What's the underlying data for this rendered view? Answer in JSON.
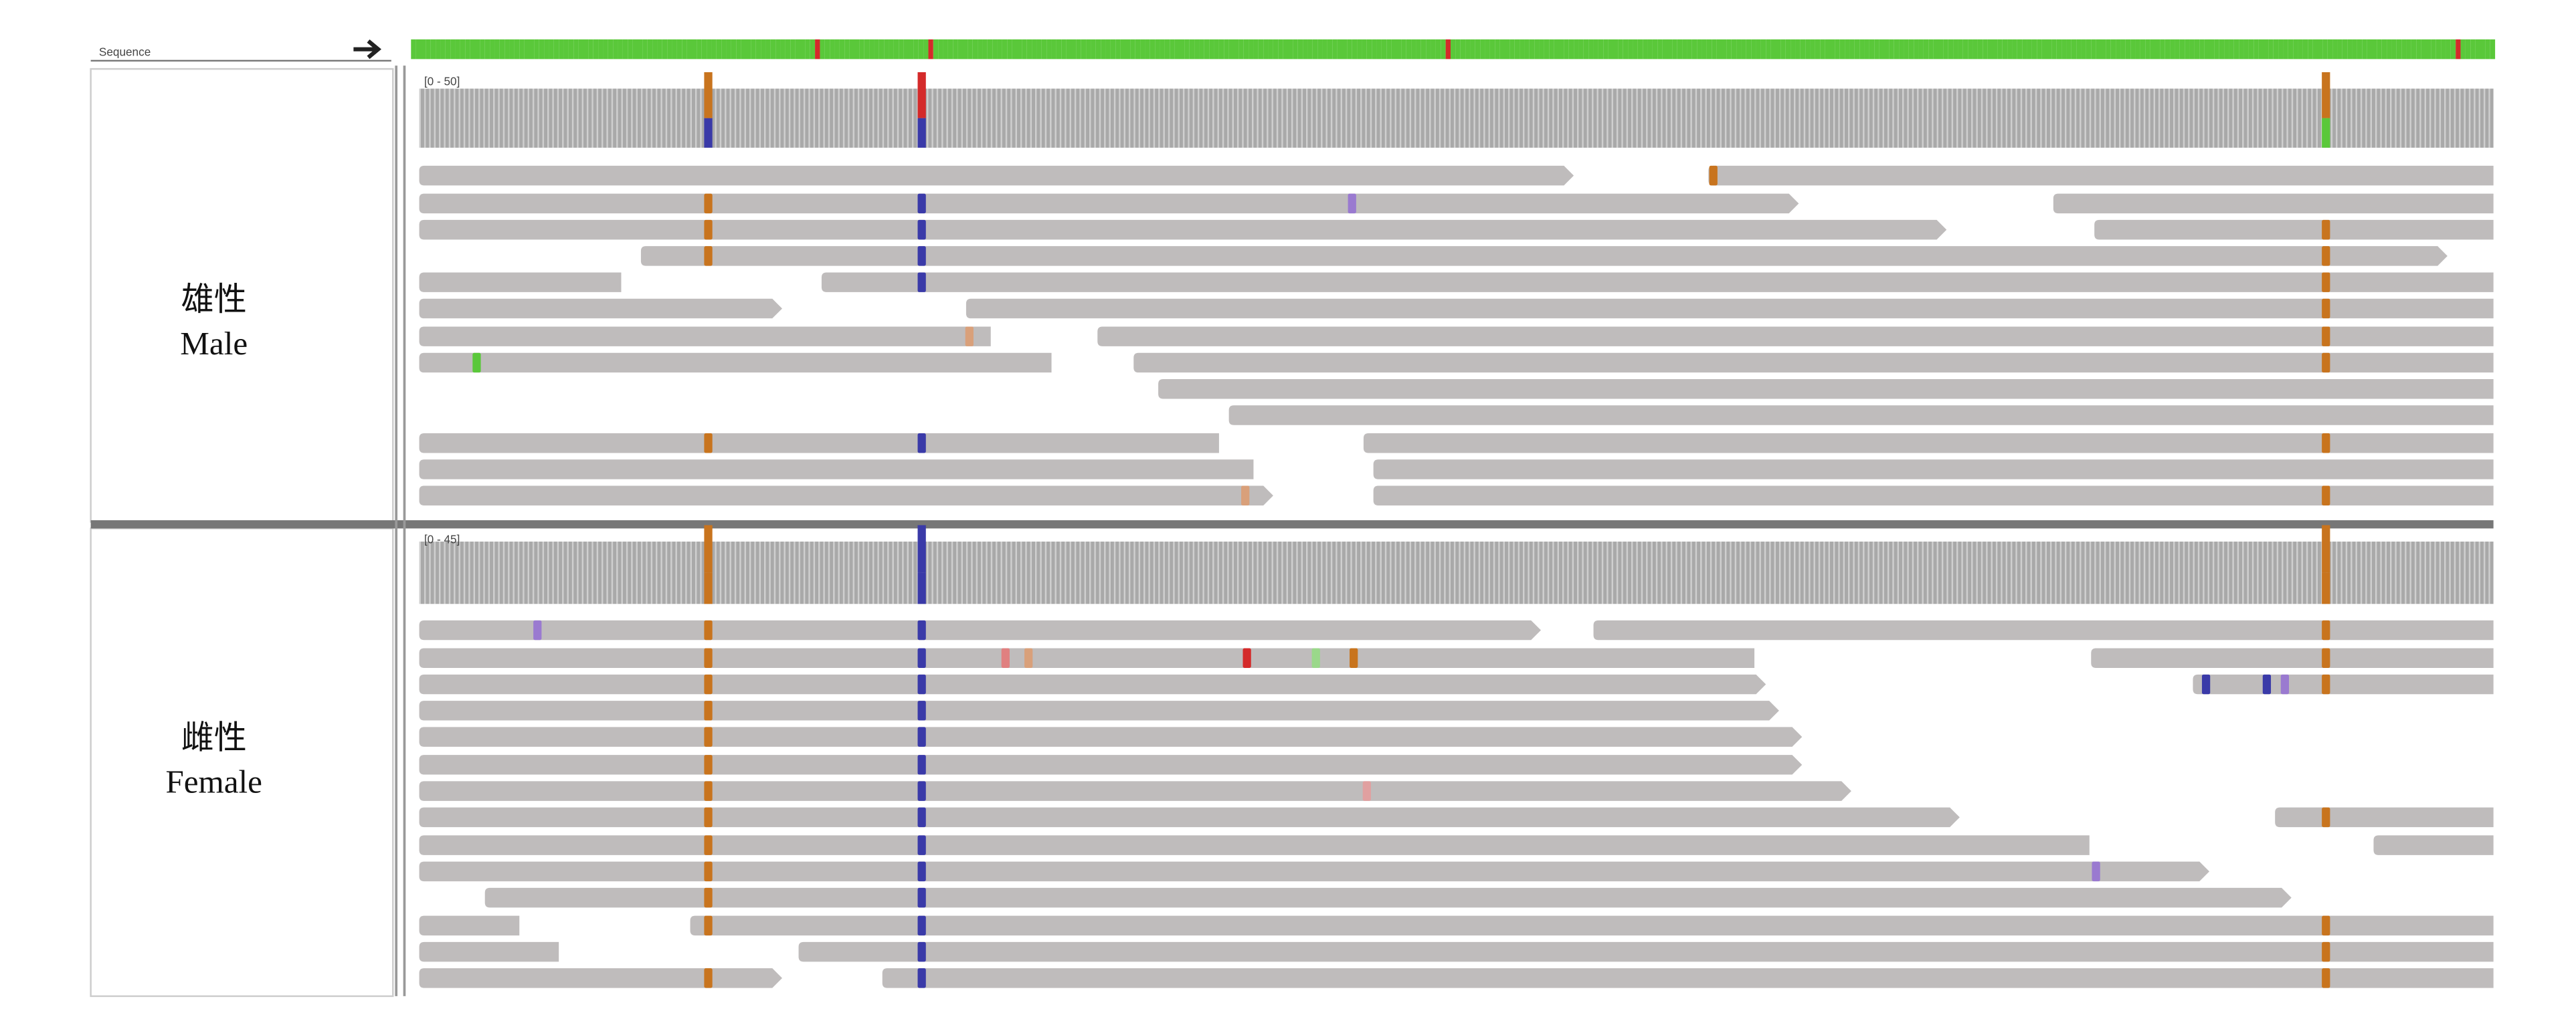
{
  "header": {
    "sequence_label": "Sequence"
  },
  "tracks": [
    {
      "label_zh": "雄性",
      "label_en": "Male",
      "range": "[0 - 50]"
    },
    {
      "label_zh": "雌性",
      "label_en": "Female",
      "range": "[0 - 45]"
    }
  ]
}
